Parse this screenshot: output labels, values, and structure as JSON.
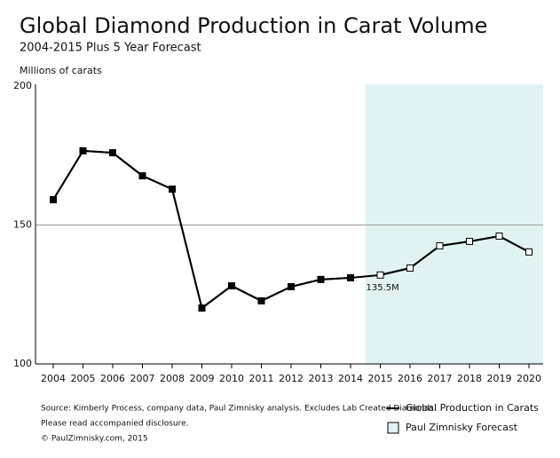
{
  "chart_data": {
    "type": "line",
    "title": "Global Diamond Production in Carat Volume",
    "subtitle": "2004-2015 Plus 5 Year Forecast",
    "y_label": "Millions of carats",
    "categories": [
      "2004",
      "2005",
      "2006",
      "2007",
      "2008",
      "2009",
      "2010",
      "2011",
      "2012",
      "2013",
      "2014",
      "2015",
      "2016",
      "2017",
      "2018",
      "2019",
      "2020"
    ],
    "series": [
      {
        "name": "Global Production in Carats",
        "color": "#000000",
        "marker": "filled-square",
        "values": [
          159.1,
          176.7,
          176,
          167.7,
          162.9,
          120.1,
          128.1,
          122.7,
          127.8,
          130.4,
          131,
          null,
          null,
          null,
          null,
          null,
          null
        ]
      },
      {
        "name": "Paul Zimnisky Forecast",
        "color": "#000000",
        "marker": "open-square",
        "shade": "#e0f3f2",
        "values": [
          null,
          null,
          null,
          null,
          null,
          null,
          null,
          null,
          null,
          null,
          null,
          132,
          134.5,
          142.5,
          144.1,
          146,
          140.3
        ]
      }
    ],
    "annotation": "135.5M",
    "ylim": [
      100,
      200
    ],
    "yticks": [
      100,
      150,
      200
    ],
    "grid": true,
    "notes": [
      "Source: Kimberly Process, company data, Paul Zimnisky analysis.  Excludes Lab Created Diamonds.",
      "Please read accompanied disclosure.",
      "© PaulZimnisky.com, 2015"
    ]
  }
}
